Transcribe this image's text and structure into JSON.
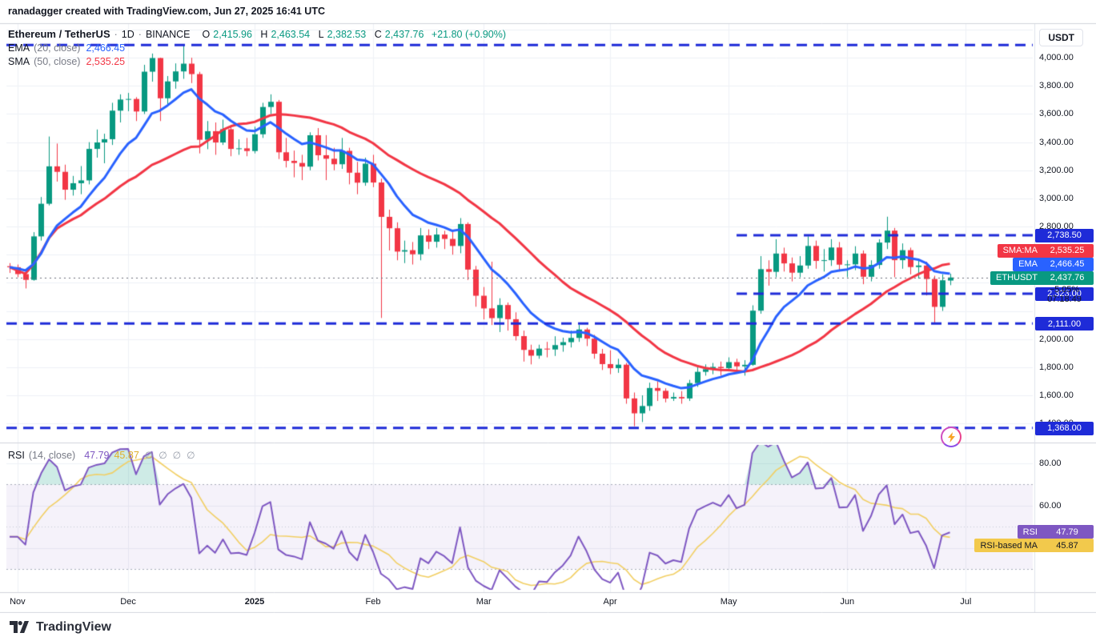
{
  "topbar": {
    "attribution": "ranadagger created with TradingView.com, Jun 27, 2025 16:41 UTC"
  },
  "header": {
    "symbol": "Ethereum / TetherUS",
    "sep": "·",
    "interval": "1D",
    "exchange": "BINANCE",
    "axis_symbol": "ETHUSDT",
    "ohlc": {
      "o_label": "O",
      "o": "2,415.96",
      "h_label": "H",
      "h": "2,463.54",
      "l_label": "L",
      "l": "2,382.53",
      "c_label": "C",
      "c": "2,437.76",
      "change": "+21.80 (+0.90%)"
    }
  },
  "indicators": {
    "ema": {
      "name": "EMA",
      "params": "(20, close)",
      "value": "2,466.45",
      "price": 2466.45,
      "axis_name": "EMA"
    },
    "sma": {
      "name": "SMA",
      "params": "(50, close)",
      "value": "2,535.25",
      "price": 2535.25,
      "axis_name": "SMA:MA"
    }
  },
  "rsi_legend": {
    "name": "RSI",
    "params": "(14, close)",
    "value": "47.79",
    "value_num": 47.79,
    "ma_value": "45.87",
    "ma_value_num": 45.87,
    "axis_name": "RSI",
    "ma_axis_name": "RSI-based MA",
    "toggles": [
      "∅",
      "∅",
      "∅",
      "∅"
    ]
  },
  "price_axis": {
    "currency_label": "USDT",
    "countdown_percent": "−5.05%",
    "countdown_time": "07:18:49"
  },
  "footer": {
    "brand": "TradingView"
  },
  "chart_data": {
    "type": "candlestick",
    "title": "Ethereum / TetherUS · 1D · BINANCE",
    "x_axis": "time (Nov 2024 – Jul 2025, 2-day steps)",
    "y_axis": "price (USDT)",
    "ylim": [
      1270,
      4240
    ],
    "grid": true,
    "colors": {
      "up": "#089981",
      "down": "#f23645",
      "ema": "#2962ff",
      "sma": "#f23645",
      "level": "#1e2bd8",
      "grid": "#eef1f6",
      "rsi": "#7e57c2",
      "rsi_ma": "#f2cf63",
      "rsi_ma_badge": "#f2c94c",
      "rsi_band_fill": "rgba(126,87,194,0.08)",
      "rsi_band_line": "#a8adba",
      "rsi_ob_fill": "rgba(8,153,129,0.20)",
      "last_dotted": "#6a6d78",
      "separator": "#d1d4dc",
      "axis_border": "#e0e3eb"
    },
    "candles": [
      [
        2518,
        2540,
        2470,
        2511
      ],
      [
        2511,
        2530,
        2440,
        2462
      ],
      [
        2462,
        2480,
        2360,
        2421
      ],
      [
        2421,
        2760,
        2415,
        2730
      ],
      [
        2730,
        3010,
        2700,
        2962
      ],
      [
        2962,
        3440,
        2950,
        3228
      ],
      [
        3228,
        3390,
        3120,
        3189
      ],
      [
        3189,
        3240,
        2990,
        3062
      ],
      [
        3062,
        3160,
        3020,
        3108
      ],
      [
        3108,
        3230,
        3030,
        3128
      ],
      [
        3128,
        3400,
        3100,
        3352
      ],
      [
        3352,
        3490,
        3290,
        3398
      ],
      [
        3398,
        3460,
        3250,
        3421
      ],
      [
        3421,
        3680,
        3380,
        3624
      ],
      [
        3624,
        3740,
        3540,
        3703
      ],
      [
        3703,
        3750,
        3620,
        3707
      ],
      [
        3707,
        3720,
        3550,
        3618
      ],
      [
        3618,
        3950,
        3600,
        3901
      ],
      [
        3901,
        4030,
        3830,
        3998
      ],
      [
        3998,
        4000,
        3550,
        3712
      ],
      [
        3712,
        3870,
        3660,
        3832
      ],
      [
        3832,
        3960,
        3780,
        3903
      ],
      [
        3903,
        4090,
        3850,
        3958
      ],
      [
        3958,
        4000,
        3820,
        3884
      ],
      [
        3884,
        3900,
        3320,
        3417
      ],
      [
        3417,
        3550,
        3350,
        3478
      ],
      [
        3478,
        3540,
        3310,
        3398
      ],
      [
        3398,
        3560,
        3380,
        3492
      ],
      [
        3492,
        3520,
        3300,
        3352
      ],
      [
        3352,
        3420,
        3310,
        3356
      ],
      [
        3356,
        3430,
        3300,
        3337
      ],
      [
        3337,
        3510,
        3320,
        3456
      ],
      [
        3456,
        3680,
        3430,
        3650
      ],
      [
        3650,
        3740,
        3600,
        3687
      ],
      [
        3687,
        3700,
        3280,
        3328
      ],
      [
        3328,
        3430,
        3220,
        3267
      ],
      [
        3267,
        3340,
        3150,
        3252
      ],
      [
        3252,
        3310,
        3130,
        3226
      ],
      [
        3226,
        3470,
        3200,
        3449
      ],
      [
        3449,
        3500,
        3270,
        3307
      ],
      [
        3307,
        3450,
        3130,
        3282
      ],
      [
        3282,
        3360,
        3200,
        3243
      ],
      [
        3243,
        3430,
        3210,
        3338
      ],
      [
        3338,
        3360,
        3100,
        3183
      ],
      [
        3183,
        3260,
        3030,
        3112
      ],
      [
        3112,
        3290,
        3090,
        3247
      ],
      [
        3247,
        3310,
        3080,
        3113
      ],
      [
        3113,
        3140,
        2150,
        2869
      ],
      [
        2869,
        2920,
        2630,
        2788
      ],
      [
        2788,
        2830,
        2560,
        2622
      ],
      [
        2622,
        2700,
        2540,
        2632
      ],
      [
        2632,
        2690,
        2530,
        2603
      ],
      [
        2603,
        2790,
        2560,
        2737
      ],
      [
        2737,
        2780,
        2640,
        2692
      ],
      [
        2692,
        2790,
        2650,
        2743
      ],
      [
        2743,
        2770,
        2640,
        2712
      ],
      [
        2712,
        2760,
        2600,
        2662
      ],
      [
        2662,
        2860,
        2610,
        2818
      ],
      [
        2818,
        2830,
        2420,
        2494
      ],
      [
        2494,
        2520,
        2230,
        2308
      ],
      [
        2308,
        2370,
        2140,
        2218
      ],
      [
        2218,
        2550,
        2100,
        2149
      ],
      [
        2149,
        2290,
        2050,
        2242
      ],
      [
        2242,
        2260,
        2060,
        2141
      ],
      [
        2141,
        2190,
        1990,
        2021
      ],
      [
        2021,
        2060,
        1840,
        1923
      ],
      [
        1923,
        1960,
        1820,
        1882
      ],
      [
        1882,
        1960,
        1860,
        1932
      ],
      [
        1932,
        1980,
        1870,
        1926
      ],
      [
        1926,
        2020,
        1880,
        1957
      ],
      [
        1957,
        2010,
        1910,
        1978
      ],
      [
        1978,
        2060,
        1940,
        2008
      ],
      [
        2008,
        2100,
        1980,
        2068
      ],
      [
        2068,
        2080,
        1950,
        2003
      ],
      [
        2003,
        2030,
        1860,
        1896
      ],
      [
        1896,
        1930,
        1780,
        1822
      ],
      [
        1822,
        1920,
        1750,
        1793
      ],
      [
        1793,
        1860,
        1760,
        1818
      ],
      [
        1818,
        1830,
        1540,
        1578
      ],
      [
        1578,
        1620,
        1380,
        1472
      ],
      [
        1472,
        1600,
        1410,
        1524
      ],
      [
        1524,
        1690,
        1490,
        1652
      ],
      [
        1652,
        1700,
        1560,
        1632
      ],
      [
        1632,
        1650,
        1550,
        1577
      ],
      [
        1577,
        1620,
        1560,
        1588
      ],
      [
        1588,
        1630,
        1540,
        1578
      ],
      [
        1578,
        1710,
        1560,
        1687
      ],
      [
        1687,
        1800,
        1660,
        1767
      ],
      [
        1767,
        1820,
        1740,
        1786
      ],
      [
        1786,
        1830,
        1750,
        1802
      ],
      [
        1802,
        1840,
        1740,
        1793
      ],
      [
        1793,
        1870,
        1770,
        1836
      ],
      [
        1836,
        1860,
        1760,
        1806
      ],
      [
        1806,
        1850,
        1740,
        1817
      ],
      [
        1817,
        2240,
        1810,
        2202
      ],
      [
        2202,
        2590,
        2180,
        2497
      ],
      [
        2497,
        2560,
        2380,
        2478
      ],
      [
        2478,
        2710,
        2440,
        2608
      ],
      [
        2608,
        2650,
        2480,
        2538
      ],
      [
        2538,
        2580,
        2410,
        2472
      ],
      [
        2472,
        2590,
        2440,
        2523
      ],
      [
        2523,
        2730,
        2500,
        2662
      ],
      [
        2662,
        2700,
        2500,
        2556
      ],
      [
        2556,
        2640,
        2480,
        2561
      ],
      [
        2561,
        2710,
        2520,
        2651
      ],
      [
        2651,
        2690,
        2480,
        2529
      ],
      [
        2529,
        2560,
        2440,
        2531
      ],
      [
        2531,
        2660,
        2490,
        2608
      ],
      [
        2608,
        2630,
        2390,
        2443
      ],
      [
        2443,
        2560,
        2410,
        2527
      ],
      [
        2527,
        2710,
        2500,
        2686
      ],
      [
        2686,
        2870,
        2640,
        2771
      ],
      [
        2771,
        2790,
        2440,
        2561
      ],
      [
        2561,
        2680,
        2500,
        2632
      ],
      [
        2632,
        2650,
        2460,
        2512
      ],
      [
        2512,
        2570,
        2430,
        2523
      ],
      [
        2523,
        2550,
        2310,
        2427
      ],
      [
        2427,
        2450,
        2111,
        2229
      ],
      [
        2229,
        2460,
        2200,
        2418
      ],
      [
        2416,
        2464,
        2383,
        2438
      ]
    ],
    "overlays": [
      {
        "name": "EMA (20, close)",
        "window": 10,
        "color_key": "ema",
        "last_value": 2466.45
      },
      {
        "name": "SMA (50, close)",
        "window": 25,
        "color_key": "sma",
        "last_value": 2535.25
      }
    ],
    "levels": [
      {
        "price": 4090,
        "label": null,
        "from_index": 0
      },
      {
        "price": 2738.5,
        "label": "2,738.50",
        "from_index": 92
      },
      {
        "price": 2323,
        "label": "2,323.00",
        "from_index": 92
      },
      {
        "price": 2111,
        "label": "2,111.00",
        "from_index": 0
      },
      {
        "price": 1368,
        "label": "1,368.00",
        "from_index": 0
      }
    ],
    "last_price": 2437.76,
    "price_ticks": [
      {
        "v": 4000,
        "label": "4,000.00"
      },
      {
        "v": 3800,
        "label": "3,800.00"
      },
      {
        "v": 3600,
        "label": "3,600.00"
      },
      {
        "v": 3400,
        "label": "3,400.00"
      },
      {
        "v": 3200,
        "label": "3,200.00"
      },
      {
        "v": 3000,
        "label": "3,000.00"
      },
      {
        "v": 2800,
        "label": "2,800.00"
      },
      {
        "v": 2000,
        "label": "2,000.00"
      },
      {
        "v": 1800,
        "label": "1,800.00"
      },
      {
        "v": 1600,
        "label": "1,600.00"
      },
      {
        "v": 1400,
        "label": "1,400.00"
      }
    ],
    "time_labels": [
      {
        "label": "Nov",
        "i": 1
      },
      {
        "label": "Dec",
        "i": 15
      },
      {
        "label": "2025",
        "i": 31,
        "bold": true
      },
      {
        "label": "Feb",
        "i": 46
      },
      {
        "label": "Mar",
        "i": 60
      },
      {
        "label": "Apr",
        "i": 76
      },
      {
        "label": "May",
        "i": 91
      },
      {
        "label": "Jun",
        "i": 106
      },
      {
        "label": "Jul",
        "i": 121
      }
    ],
    "rsi": {
      "period": 7,
      "ma_period": 7,
      "band": [
        30,
        70
      ],
      "last": 47.79,
      "ma_last": 45.87,
      "ticks": [
        {
          "v": 80,
          "label": "80.00"
        },
        {
          "v": 60,
          "label": "60.00"
        }
      ]
    }
  }
}
